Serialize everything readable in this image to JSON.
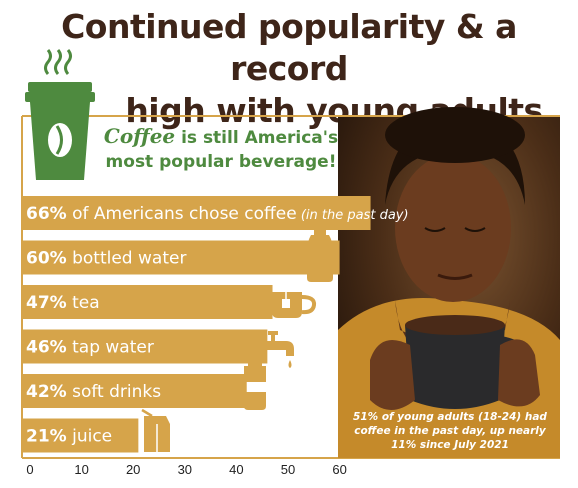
{
  "title": {
    "line1": "Continued popularity & a record",
    "line2": "high with young adults"
  },
  "tagline": {
    "highlight": "Coffee",
    "rest": " is still America's most popular beverage!"
  },
  "photo_note": "51% of young adults (18-24) had coffee in the past day, up nearly 11% since July 2021",
  "colors": {
    "title": "#3e2519",
    "bar": "#d6a44a",
    "green": "#4e8a3f",
    "frame": "#d6a44a"
  },
  "icons": [
    "coffee-cup-icon",
    "water-bottle-icon",
    "tea-cup-icon",
    "faucet-icon",
    "soda-can-icon",
    "juice-carton-icon"
  ],
  "chart_data": {
    "type": "bar",
    "orientation": "horizontal",
    "categories": [
      "coffee",
      "bottled water",
      "tea",
      "tap water",
      "soft drinks",
      "juice"
    ],
    "labels": [
      {
        "pct": "66%",
        "text": "of Americans chose coffee",
        "note": "(in the past day)"
      },
      {
        "pct": "60%",
        "text": "bottled water",
        "note": ""
      },
      {
        "pct": "47%",
        "text": "tea",
        "note": ""
      },
      {
        "pct": "46%",
        "text": "tap water",
        "note": ""
      },
      {
        "pct": "42%",
        "text": "soft drinks",
        "note": ""
      },
      {
        "pct": "21%",
        "text": "juice",
        "note": ""
      }
    ],
    "values": [
      66,
      60,
      47,
      46,
      42,
      21
    ],
    "xlim": [
      0,
      100
    ],
    "xticks": [
      0,
      10,
      20,
      30,
      40,
      50,
      60,
      70,
      80,
      90,
      100
    ],
    "grid": false
  }
}
